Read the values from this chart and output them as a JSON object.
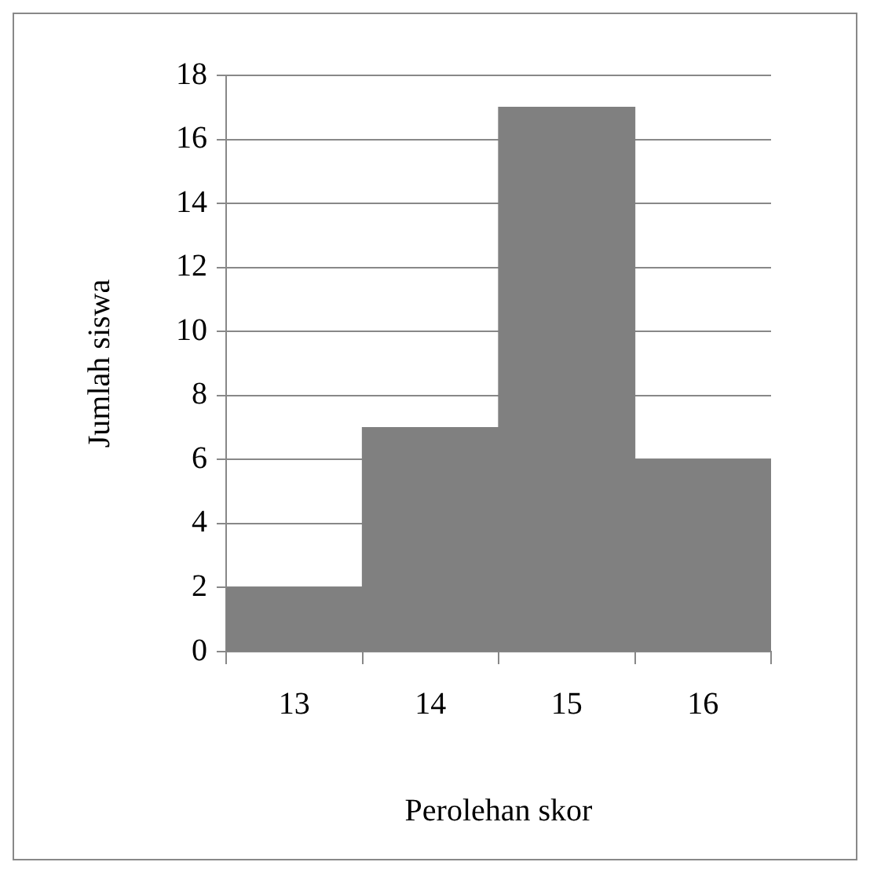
{
  "chart_data": {
    "type": "bar",
    "categories": [
      "13",
      "14",
      "15",
      "16"
    ],
    "values": [
      2,
      7,
      17,
      6
    ],
    "color": "#808080",
    "xlabel": "Perolehan skor",
    "ylabel": "Jumlah siswa",
    "ylim": [
      0,
      18
    ],
    "yticks": [
      0,
      2,
      4,
      6,
      8,
      10,
      12,
      14,
      16,
      18
    ],
    "grid": "y",
    "legend": false
  }
}
